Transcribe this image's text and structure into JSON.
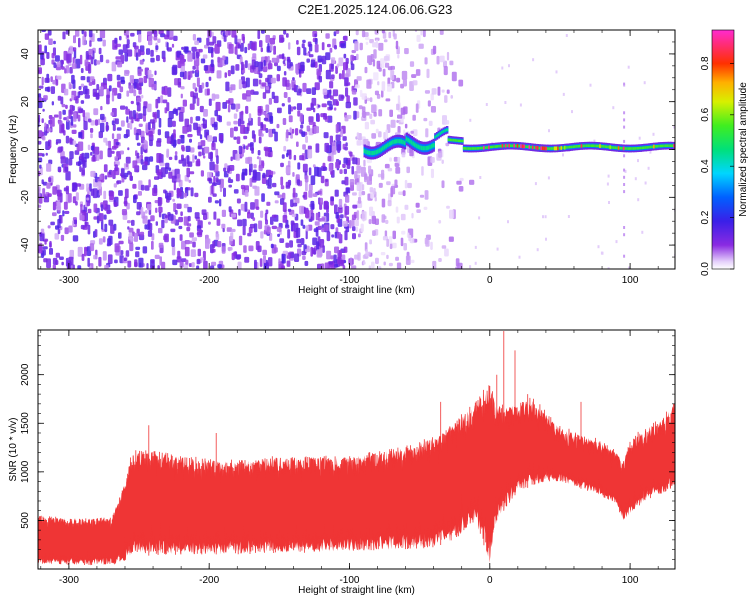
{
  "title": "C2E1.2025.124.06.06.G23",
  "chart_data": [
    {
      "type": "heatmap",
      "name": "spectrogram",
      "xlabel": "Height of straight line (km)",
      "ylabel": "Frequency (Hz)",
      "xlim": [
        -322,
        132
      ],
      "ylim": [
        -50,
        50
      ],
      "xticks": [
        -300,
        -200,
        -100,
        0,
        100
      ],
      "xtick_labels": [
        "-300",
        "-200",
        "-100",
        "0",
        "100"
      ],
      "yticks": [
        -40,
        -20,
        0,
        20,
        40
      ],
      "ytick_labels": [
        "-40",
        "-20",
        "0",
        "20",
        "40"
      ],
      "colorbar": {
        "label": "Normalized spectral amplitude",
        "range": [
          0.0,
          0.93
        ],
        "ticks": [
          0.0,
          0.2,
          0.4,
          0.6,
          0.8
        ],
        "tick_labels": [
          "0.0",
          "0.2",
          "0.4",
          "0.6",
          "0.8"
        ],
        "colormap": "rainbow (white → violet → blue → cyan → green → yellow → orange → red → magenta)"
      },
      "regions": [
        {
          "x_range": [
            -322,
            -95
          ],
          "freq_range": [
            -50,
            50
          ],
          "description": "broadband noise",
          "amplitude_typical": 0.08
        },
        {
          "x_range": [
            -95,
            -15
          ],
          "freq_range": [
            -50,
            50
          ],
          "description": "fading noise",
          "amplitude_typical": 0.04
        },
        {
          "x_range": [
            -90,
            132
          ],
          "freq_center": 1,
          "bandwidth_hz": 6,
          "description": "carrier line",
          "amplitude_peak": 0.9
        },
        {
          "x_range": [
            -15,
            132
          ],
          "freq_range": [
            -50,
            50
          ],
          "description": "mostly empty",
          "amplitude_typical": 0.0
        }
      ],
      "grid": false
    },
    {
      "type": "line",
      "name": "snr",
      "xlabel": "Height of straight line (km)",
      "ylabel": "SNR (10 * v/v)",
      "xlim": [
        -322,
        132
      ],
      "ylim": [
        0,
        2460
      ],
      "xticks": [
        -300,
        -200,
        -100,
        0,
        100
      ],
      "xtick_labels": [
        "-300",
        "-200",
        "-100",
        "0",
        "100"
      ],
      "yticks": [
        500,
        1000,
        1500,
        2000
      ],
      "ytick_labels": [
        "500",
        "1000",
        "1500",
        "2000"
      ],
      "line_color": "#ef3535",
      "grid": false,
      "envelope": {
        "x": [
          -322,
          -300,
          -270,
          -262,
          -255,
          -240,
          -220,
          -200,
          -180,
          -150,
          -120,
          -100,
          -80,
          -60,
          -40,
          -25,
          -10,
          0,
          5,
          10,
          20,
          30,
          40,
          50,
          60,
          70,
          80,
          90,
          95,
          100,
          110,
          120,
          132
        ],
        "lower": [
          50,
          40,
          40,
          60,
          130,
          140,
          140,
          150,
          150,
          160,
          170,
          180,
          190,
          200,
          220,
          300,
          500,
          50,
          500,
          600,
          800,
          850,
          900,
          900,
          850,
          800,
          750,
          650,
          500,
          550,
          700,
          750,
          850
        ],
        "upper": [
          540,
          520,
          520,
          800,
          1200,
          1200,
          1150,
          1120,
          1100,
          1150,
          1150,
          1150,
          1200,
          1250,
          1350,
          1500,
          1700,
          1900,
          1700,
          1650,
          1700,
          1750,
          1600,
          1450,
          1400,
          1350,
          1300,
          1200,
          1100,
          1300,
          1450,
          1500,
          1700
        ],
        "spikes": [
          [
            -243,
            1480
          ],
          [
            -195,
            1400
          ],
          [
            -35,
            1720
          ],
          [
            5,
            2000
          ],
          [
            10,
            2450
          ],
          [
            18,
            2250
          ],
          [
            27,
            1800
          ],
          [
            65,
            1720
          ]
        ]
      }
    }
  ]
}
